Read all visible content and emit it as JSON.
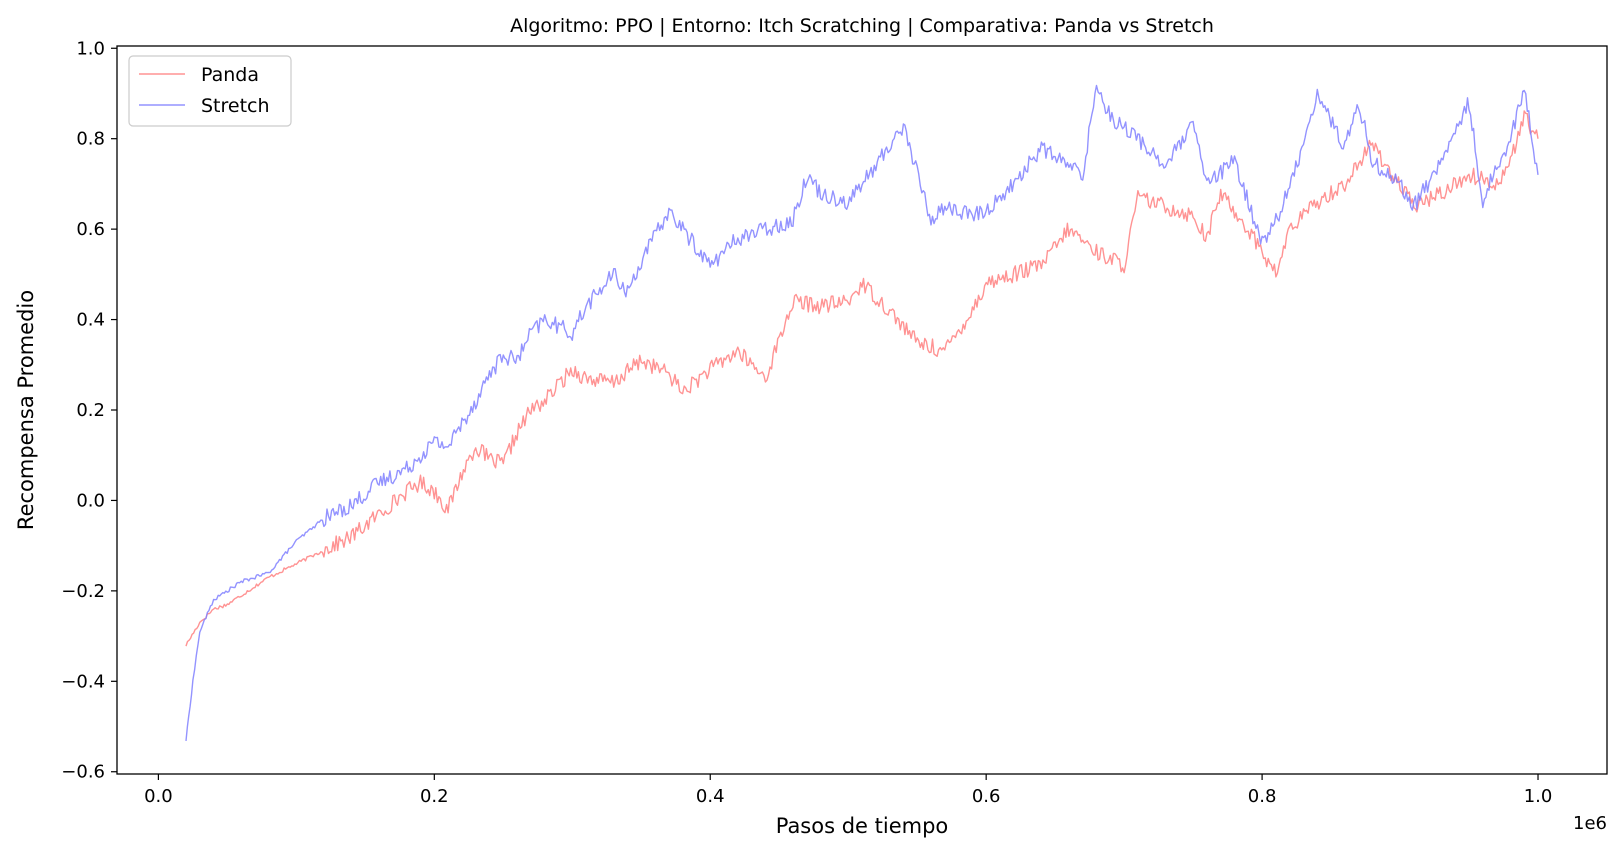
{
  "chart_data": {
    "type": "line",
    "title": "Algoritmo: PPO | Entorno: Itch Scratching | Comparativa: Panda vs Stretch",
    "xlabel": "Pasos de tiempo",
    "ylabel": "Recompensa Promedio",
    "x_offset_label": "1e6",
    "xlim": [
      -0.03,
      1.05
    ],
    "ylim": [
      -0.605,
      1.005
    ],
    "x_ticks": [
      0.0,
      0.2,
      0.4,
      0.6,
      0.8,
      1.0
    ],
    "x_tick_labels": [
      "0.0",
      "0.2",
      "0.4",
      "0.6",
      "0.8",
      "1.0"
    ],
    "y_ticks": [
      -0.6,
      -0.4,
      -0.2,
      0.0,
      0.2,
      0.4,
      0.6,
      0.8,
      1.0
    ],
    "y_tick_labels": [
      "−0.6",
      "−0.4",
      "−0.2",
      "0.0",
      "0.2",
      "0.4",
      "0.6",
      "0.8",
      "1.0"
    ],
    "grid": false,
    "legend_position": "top-left",
    "series": [
      {
        "name": "Panda",
        "color": "#ff8080",
        "x": [
          0.02,
          0.03,
          0.04,
          0.05,
          0.06,
          0.08,
          0.1,
          0.12,
          0.14,
          0.16,
          0.18,
          0.19,
          0.2,
          0.21,
          0.22,
          0.23,
          0.24,
          0.25,
          0.26,
          0.27,
          0.28,
          0.3,
          0.31,
          0.33,
          0.35,
          0.37,
          0.38,
          0.4,
          0.42,
          0.44,
          0.46,
          0.48,
          0.5,
          0.51,
          0.53,
          0.55,
          0.57,
          0.59,
          0.6,
          0.62,
          0.64,
          0.66,
          0.68,
          0.7,
          0.71,
          0.73,
          0.75,
          0.76,
          0.77,
          0.79,
          0.81,
          0.82,
          0.84,
          0.86,
          0.88,
          0.89,
          0.91,
          0.93,
          0.95,
          0.97,
          0.98,
          0.99,
          1.0
        ],
        "y": [
          -0.32,
          -0.27,
          -0.24,
          -0.23,
          -0.21,
          -0.17,
          -0.14,
          -0.11,
          -0.08,
          -0.03,
          0.02,
          0.04,
          0.02,
          -0.02,
          0.06,
          0.12,
          0.09,
          0.08,
          0.15,
          0.2,
          0.22,
          0.29,
          0.27,
          0.26,
          0.31,
          0.28,
          0.24,
          0.29,
          0.33,
          0.27,
          0.44,
          0.43,
          0.44,
          0.48,
          0.42,
          0.35,
          0.33,
          0.42,
          0.48,
          0.5,
          0.52,
          0.6,
          0.55,
          0.52,
          0.67,
          0.65,
          0.63,
          0.58,
          0.68,
          0.6,
          0.5,
          0.6,
          0.66,
          0.7,
          0.79,
          0.74,
          0.65,
          0.68,
          0.72,
          0.7,
          0.75,
          0.85,
          0.8
        ]
      },
      {
        "name": "Stretch",
        "color": "#8080ff",
        "x": [
          0.02,
          0.025,
          0.03,
          0.04,
          0.06,
          0.08,
          0.1,
          0.12,
          0.14,
          0.16,
          0.18,
          0.2,
          0.21,
          0.22,
          0.23,
          0.24,
          0.25,
          0.26,
          0.27,
          0.28,
          0.3,
          0.31,
          0.33,
          0.34,
          0.35,
          0.37,
          0.38,
          0.4,
          0.42,
          0.44,
          0.46,
          0.47,
          0.48,
          0.5,
          0.52,
          0.54,
          0.56,
          0.57,
          0.59,
          0.6,
          0.62,
          0.64,
          0.66,
          0.67,
          0.68,
          0.69,
          0.71,
          0.73,
          0.75,
          0.76,
          0.78,
          0.8,
          0.81,
          0.82,
          0.84,
          0.86,
          0.87,
          0.88,
          0.9,
          0.91,
          0.93,
          0.95,
          0.96,
          0.97,
          0.98,
          0.99,
          1.0
        ],
        "y": [
          -0.53,
          -0.4,
          -0.29,
          -0.22,
          -0.18,
          -0.16,
          -0.09,
          -0.04,
          -0.01,
          0.04,
          0.07,
          0.13,
          0.12,
          0.17,
          0.22,
          0.28,
          0.32,
          0.31,
          0.37,
          0.4,
          0.37,
          0.43,
          0.5,
          0.46,
          0.53,
          0.64,
          0.6,
          0.52,
          0.58,
          0.6,
          0.62,
          0.72,
          0.68,
          0.66,
          0.74,
          0.83,
          0.62,
          0.65,
          0.63,
          0.64,
          0.7,
          0.78,
          0.74,
          0.72,
          0.92,
          0.85,
          0.8,
          0.74,
          0.83,
          0.7,
          0.75,
          0.57,
          0.62,
          0.69,
          0.9,
          0.78,
          0.88,
          0.75,
          0.7,
          0.65,
          0.75,
          0.88,
          0.66,
          0.74,
          0.8,
          0.91,
          0.72
        ]
      }
    ]
  }
}
